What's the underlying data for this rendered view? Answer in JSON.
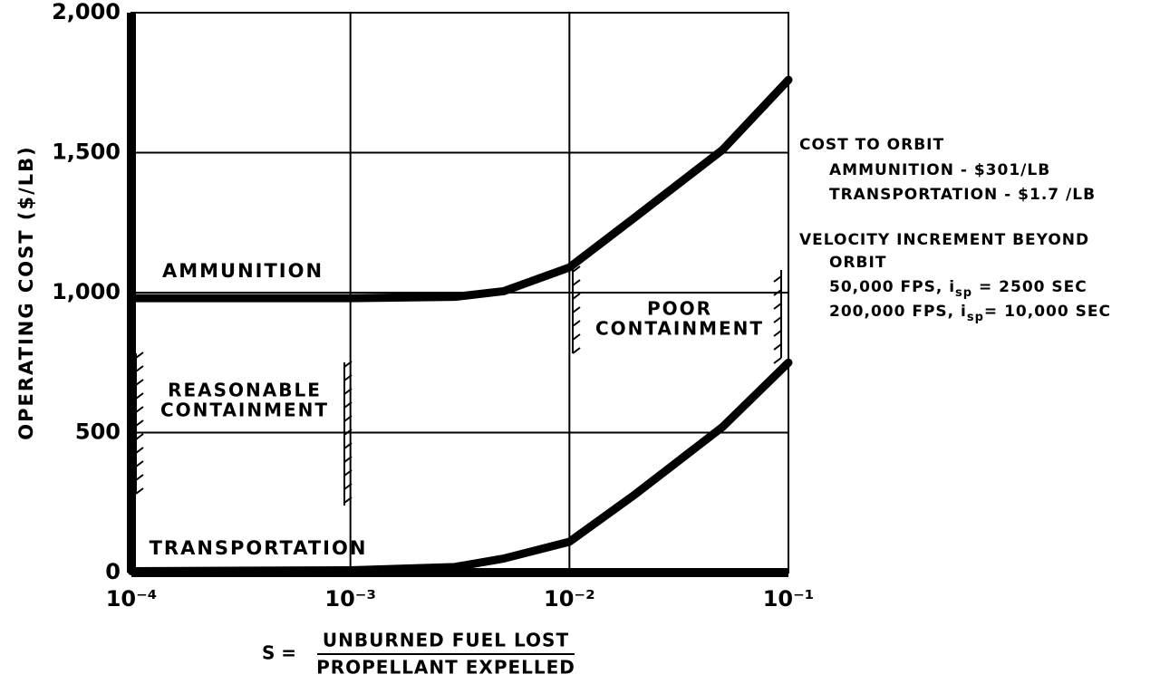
{
  "chart_data": {
    "type": "line",
    "ylabel": "OPERATING COST ($/LB)",
    "xlabel_prefix": "S =",
    "xlabel_numerator": "UNBURNED FUEL LOST",
    "xlabel_denominator": "PROPELLANT EXPELLED",
    "log_x": true,
    "grid": true,
    "x": [
      0.0001,
      0.001,
      0.003,
      0.005,
      0.01,
      0.02,
      0.05,
      0.1
    ],
    "series": [
      {
        "name": "AMMUNITION",
        "color": "#000000",
        "values": [
          980,
          980,
          985,
          1005,
          1090,
          1270,
          1510,
          1760
        ]
      },
      {
        "name": "TRANSPORTATION",
        "color": "#000000",
        "values": [
          5,
          8,
          20,
          50,
          110,
          280,
          520,
          750
        ]
      }
    ],
    "xlim": [
      0.0001,
      0.1
    ],
    "xticks": [
      {
        "value": 0.0001,
        "label": "10⁻⁴"
      },
      {
        "value": 0.001,
        "label": "10⁻³"
      },
      {
        "value": 0.01,
        "label": "10⁻²"
      },
      {
        "value": 0.1,
        "label": "10⁻¹"
      }
    ],
    "ylim": [
      0,
      2000
    ],
    "yticks": [
      0,
      500,
      {
        "value": 1000,
        "label": "1,000"
      },
      {
        "value": 1500,
        "label": "1,500"
      },
      {
        "value": 2000,
        "label": "2,000"
      }
    ],
    "regions": [
      {
        "lines": [
          "REASONABLE",
          "CONTAINMENT"
        ]
      },
      {
        "lines": [
          "POOR",
          "CONTAINMENT"
        ]
      }
    ],
    "notes": [
      {
        "text": "COST TO ORBIT"
      },
      {
        "text": "AMMUNITION - $301/LB"
      },
      {
        "text": "TRANSPORTATION - $1.7 /LB"
      },
      {
        "text": "VELOCITY INCREMENT BEYOND"
      },
      {
        "text": "ORBIT"
      },
      {
        "text": "50,000 FPS, i",
        "sub": "sp",
        "rest": " = 2500 SEC"
      },
      {
        "text": "200,000 FPS, i",
        "sub": "sp",
        "rest": "= 10,000 SEC"
      }
    ]
  }
}
